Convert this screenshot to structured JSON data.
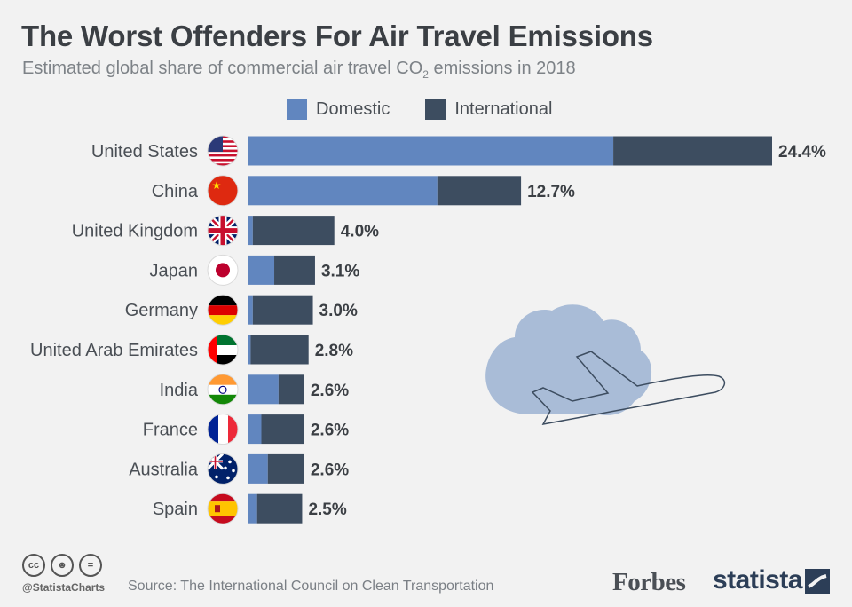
{
  "title": "The Worst Offenders For Air Travel Emissions",
  "subtitle_main": "Estimated global share of commercial air travel CO",
  "subtitle_sub": "2",
  "subtitle_end": " emissions in 2018",
  "footer": {
    "handle": "@StatistaCharts",
    "source": "Source: The International Council on Clean Transportation",
    "brand_forbes": "Forbes",
    "brand_statista": "statista"
  },
  "colors": {
    "domestic": "#6186bf",
    "international": "#3d4d60",
    "background": "#f2f2f2",
    "cloud": "#a9bcd7"
  },
  "icons": [
    "cloud-icon",
    "airplane-icon",
    "cc-icon",
    "by-icon",
    "equals-icon",
    "statista-logo-icon"
  ],
  "chart_data": {
    "type": "bar",
    "orientation": "horizontal",
    "stacked": true,
    "unit": "%",
    "categories": [
      "United States",
      "China",
      "United Kingdom",
      "Japan",
      "Germany",
      "United Arab Emirates",
      "India",
      "France",
      "Australia",
      "Spain"
    ],
    "flags": [
      "flag-us-icon",
      "flag-cn-icon",
      "flag-uk-icon",
      "flag-jp-icon",
      "flag-de-icon",
      "flag-ae-icon",
      "flag-in-icon",
      "flag-fr-icon",
      "flag-au-icon",
      "flag-es-icon"
    ],
    "labels": [
      "24.4%",
      "12.7%",
      "4.0%",
      "3.1%",
      "3.0%",
      "2.8%",
      "2.6%",
      "2.6%",
      "2.6%",
      "2.5%"
    ],
    "totals": [
      24.4,
      12.7,
      4.0,
      3.1,
      3.0,
      2.8,
      2.6,
      2.6,
      2.6,
      2.5
    ],
    "series": [
      {
        "name": "Domestic",
        "values": [
          17.0,
          8.8,
          0.2,
          1.2,
          0.2,
          0.1,
          1.4,
          0.6,
          0.9,
          0.4
        ]
      },
      {
        "name": "International",
        "values": [
          7.4,
          3.9,
          3.8,
          1.9,
          2.8,
          2.7,
          1.2,
          2.0,
          1.7,
          2.1
        ]
      }
    ],
    "xlim": [
      0,
      24.4
    ],
    "legend": "top",
    "grid": false
  }
}
